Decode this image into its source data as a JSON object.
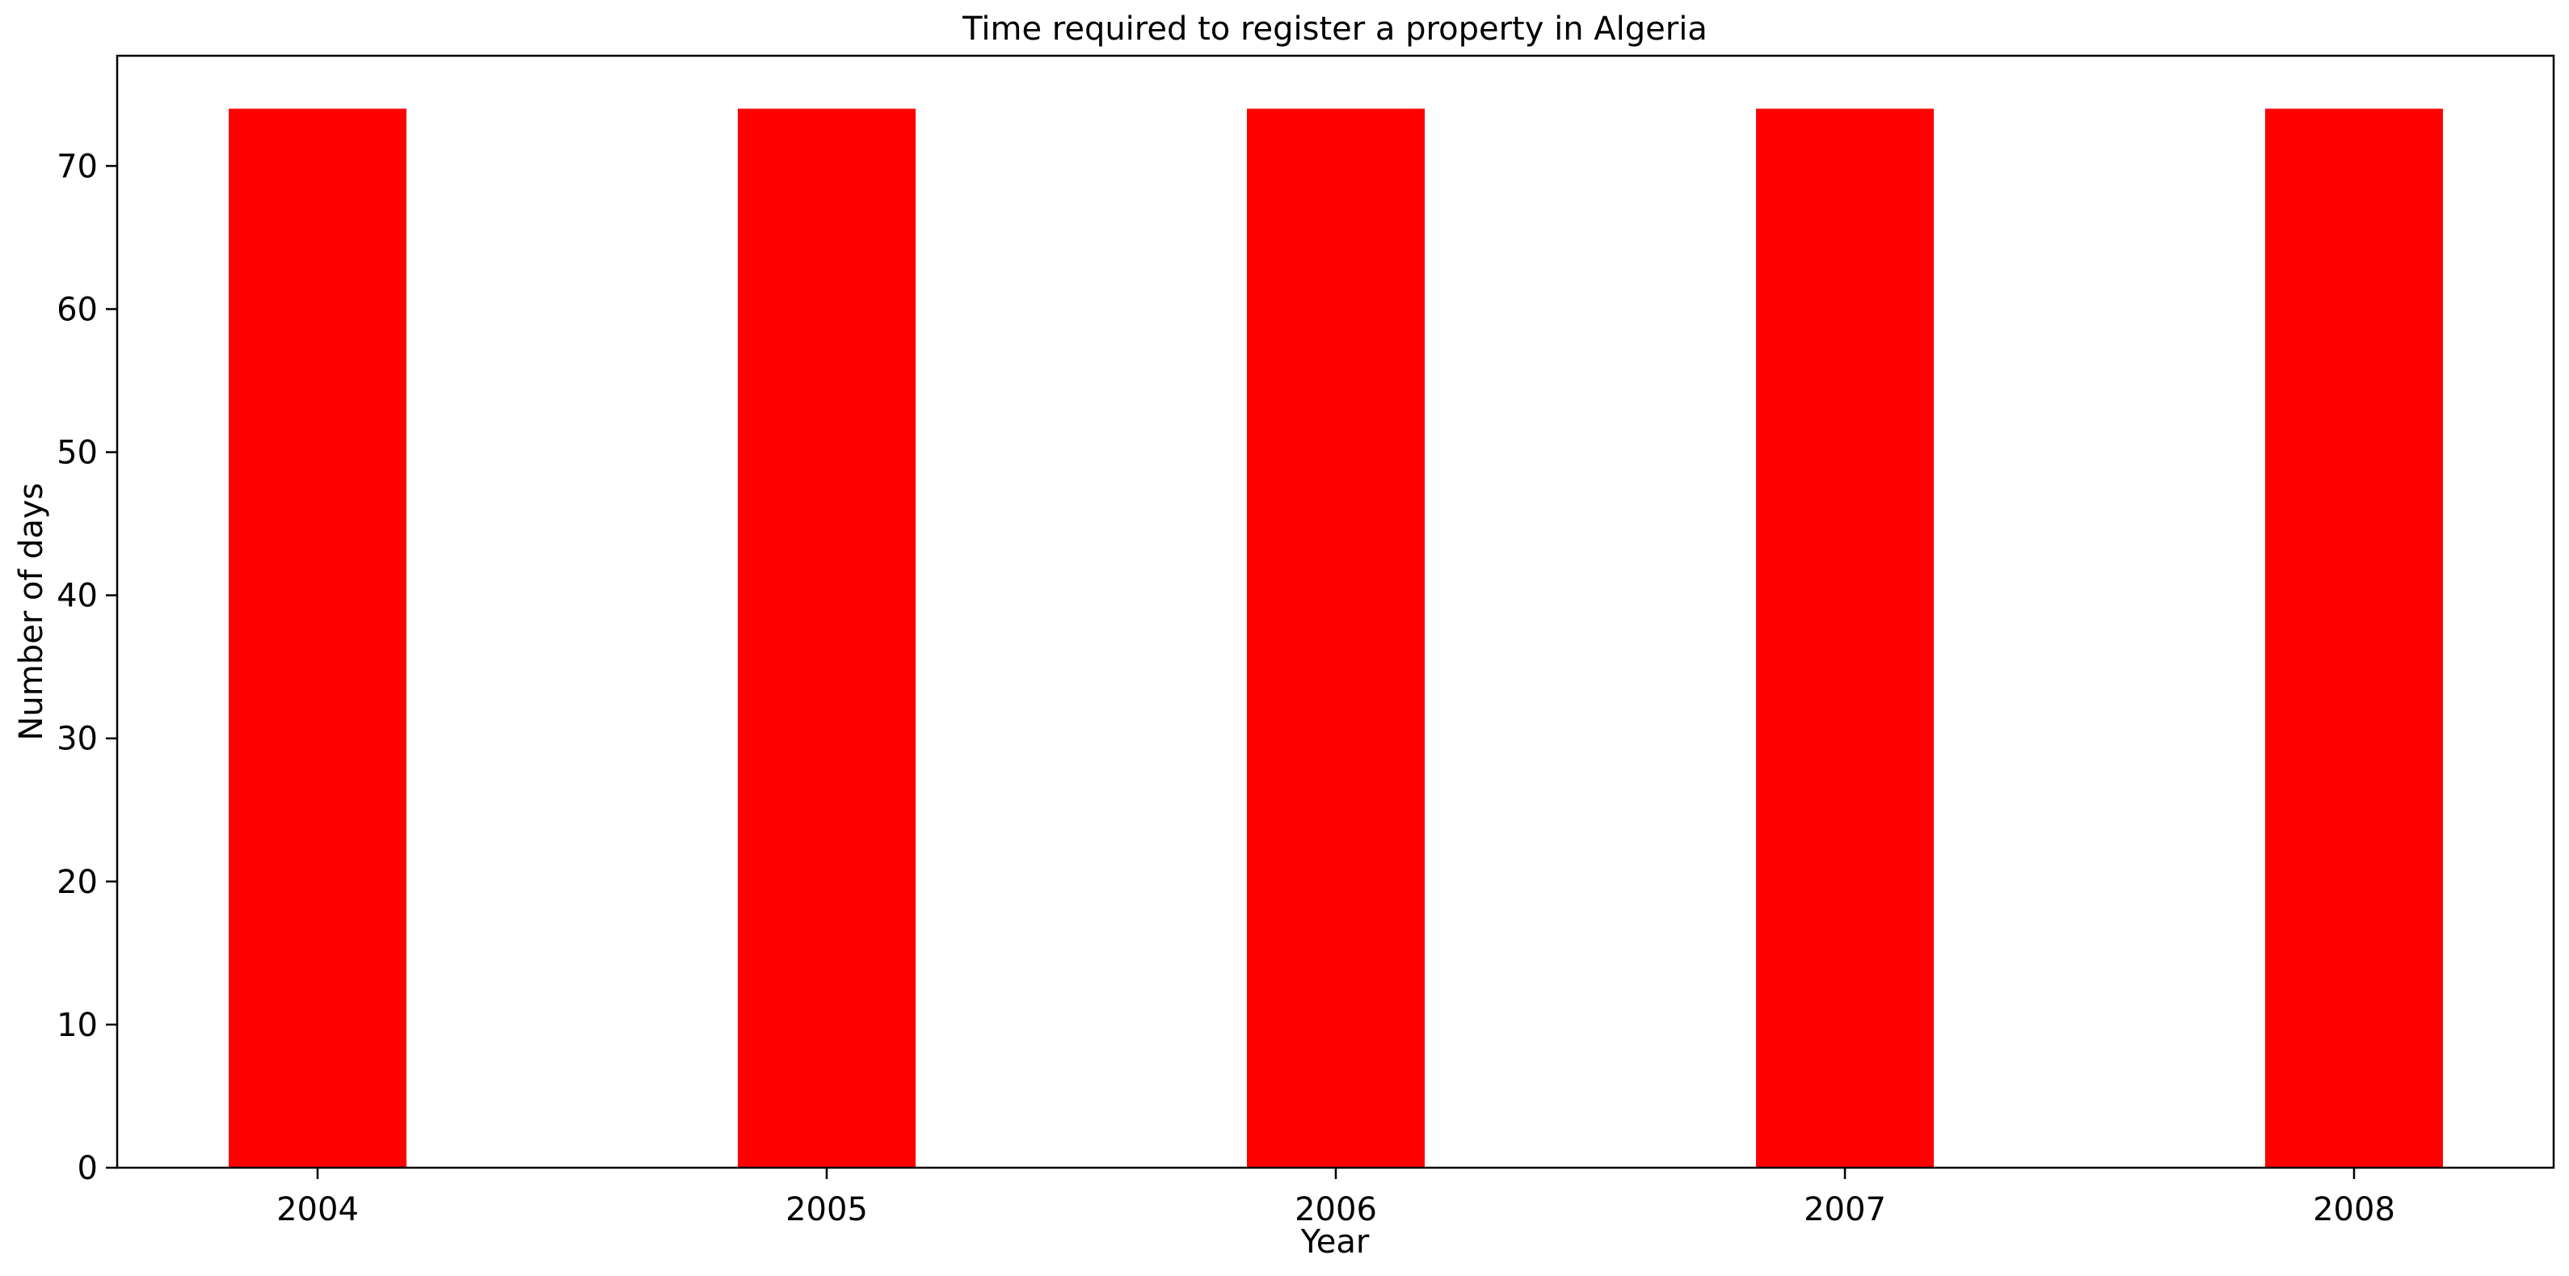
{
  "chart_data": {
    "type": "bar",
    "title": "Time required to register a property in Algeria",
    "xlabel": "Year",
    "ylabel": "Number of days",
    "categories": [
      "2004",
      "2005",
      "2006",
      "2007",
      "2008"
    ],
    "series": [
      {
        "values": [
          74,
          74,
          74,
          74,
          74
        ]
      }
    ],
    "ylim": [
      0,
      77.7
    ],
    "yticks": [
      0,
      10,
      20,
      30,
      40,
      50,
      60,
      70
    ],
    "grid": false,
    "legend": "none",
    "bar_color": "#ff0000"
  }
}
